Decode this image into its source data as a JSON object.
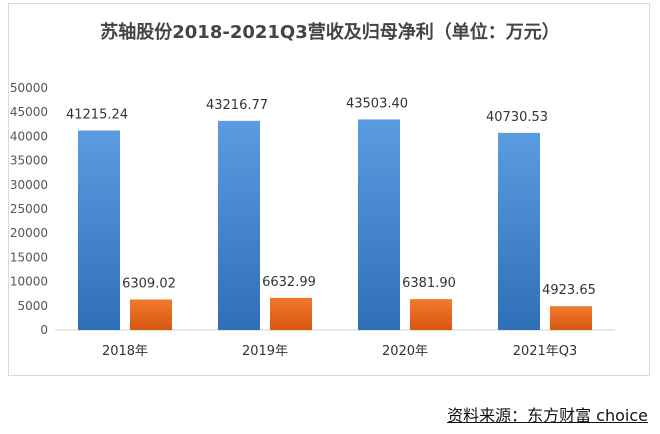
{
  "chart_data": {
    "type": "bar",
    "title": "苏轴股份2018-2021Q3营收及归母净利（单位：万元）",
    "categories": [
      "2018年",
      "2019年",
      "2020年",
      "2021年Q3"
    ],
    "series": [
      {
        "color": "#3f80c8",
        "values": [
          41215.24,
          43216.77,
          43503.4,
          40730.53
        ],
        "labels": [
          "41215.24",
          "43216.77",
          "43503.40",
          "40730.53"
        ]
      },
      {
        "color": "#e9661e",
        "values": [
          6309.02,
          6632.99,
          6381.9,
          4923.65
        ],
        "labels": [
          "6309.02",
          "6632.99",
          "6381.90",
          "4923.65"
        ]
      }
    ],
    "yticks": [
      "0",
      "5000",
      "10000",
      "15000",
      "20000",
      "25000",
      "30000",
      "35000",
      "40000",
      "45000",
      "50000"
    ],
    "ylim": [
      0,
      50000
    ],
    "grid": false,
    "legend": "none"
  },
  "source": {
    "label": "资料来源：",
    "value": "东方财富 choice"
  }
}
